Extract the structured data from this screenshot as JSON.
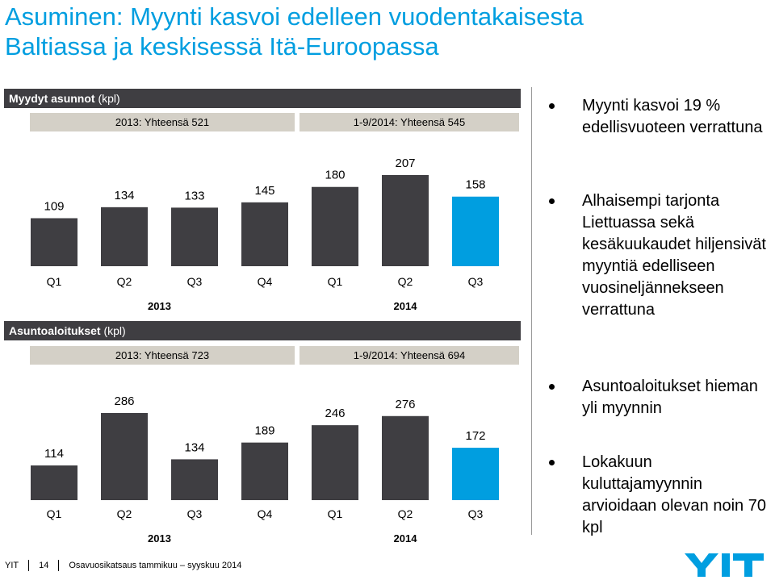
{
  "title": {
    "line1": "Asuminen: Myynti kasvoi edelleen vuodentakaisesta",
    "line2": "Baltiassa ja keskisessä Itä-Euroopassa"
  },
  "colors": {
    "title": "#009ee0",
    "bar_dark": "#3f3e42",
    "bar_highlight": "#009ee0",
    "total_box": "#d4d0c7",
    "header_bar": "#3f3e42"
  },
  "sold": {
    "header_bold": "Myydyt asunnot",
    "header_unit": "(kpl)",
    "total_2013": "2013: Yhteensä 521",
    "total_2014": "1-9/2014: Yhteensä 545"
  },
  "starts": {
    "header_bold": "Asuntoaloitukset",
    "header_unit": "(kpl)",
    "total_2013": "2013: Yhteensä 723",
    "total_2014": "1-9/2014: Yhteensä 694"
  },
  "chart_data": [
    {
      "type": "bar",
      "title": "Myydyt asunnot (kpl)",
      "categories": [
        "Q1",
        "Q2",
        "Q3",
        "Q4",
        "Q1",
        "Q2",
        "Q3"
      ],
      "years": [
        "2013",
        "2014"
      ],
      "values": [
        109,
        134,
        133,
        145,
        180,
        207,
        158
      ],
      "highlight_index": 6,
      "ylim": [
        0,
        207
      ],
      "grid": false
    },
    {
      "type": "bar",
      "title": "Asuntoaloitukset (kpl)",
      "categories": [
        "Q1",
        "Q2",
        "Q3",
        "Q4",
        "Q1",
        "Q2",
        "Q3"
      ],
      "years": [
        "2013",
        "2014"
      ],
      "values": [
        114,
        286,
        134,
        189,
        246,
        276,
        172
      ],
      "highlight_index": 6,
      "ylim": [
        0,
        286
      ],
      "grid": false
    }
  ],
  "bullets": [
    "Myynti kasvoi 19 % edellisvuoteen verrattuna",
    "Alhaisempi tarjonta Liettuassa sekä kesäkuukaudet hiljensivät myyntiä edelliseen vuosineljännekseen verrattuna",
    "Asuntoaloitukset hieman yli myynnin",
    "Lokakuun kuluttajamyynnin arvioidaan olevan noin 70 kpl"
  ],
  "footer": {
    "company": "YIT",
    "page": "14",
    "text": "Osavuosikatsaus tammikuu – syyskuu 2014"
  },
  "logo": {
    "text": "YIT",
    "icon": "yit-logo"
  }
}
